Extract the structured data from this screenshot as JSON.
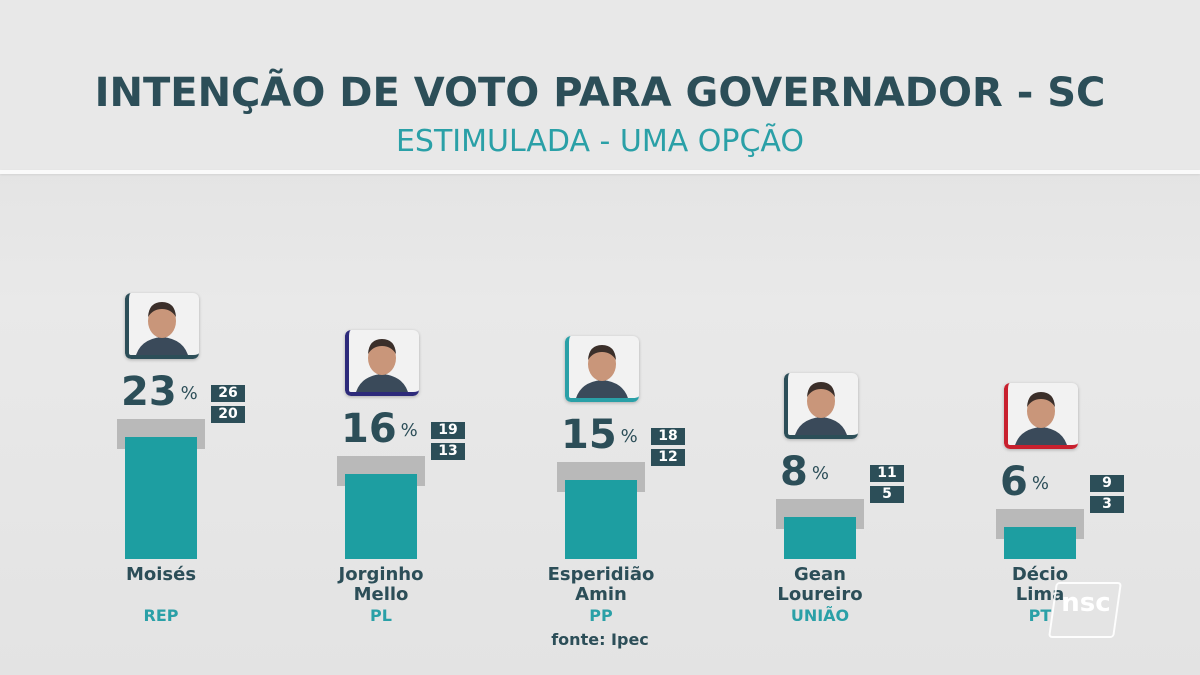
{
  "header": {
    "title": "INTENÇÃO DE VOTO PARA GOVERNADOR - SC",
    "subtitle": "ESTIMULADA - UMA OPÇÃO"
  },
  "source": "fonte: Ipec",
  "logo": "nsc",
  "chart_data": {
    "type": "bar",
    "title": "INTENÇÃO DE VOTO PARA GOVERNADOR - SC",
    "subtitle": "ESTIMULADA - UMA OPÇÃO",
    "unit": "%",
    "categories": [
      "Moisés",
      "Jorginho Mello",
      "Esperidião Amin",
      "Gean Loureiro",
      "Décio Lima"
    ],
    "candidates": [
      {
        "name_lines": [
          "Moisés"
        ],
        "party": "REP",
        "value": 23,
        "upper": 26,
        "lower": 20,
        "accent": "#2c4e58"
      },
      {
        "name_lines": [
          "Jorginho",
          "Mello"
        ],
        "party": "PL",
        "value": 16,
        "upper": 19,
        "lower": 13,
        "accent": "#2d2a7a"
      },
      {
        "name_lines": [
          "Esperidião",
          "Amin"
        ],
        "party": "PP",
        "value": 15,
        "upper": 18,
        "lower": 12,
        "accent": "#2aa0a7"
      },
      {
        "name_lines": [
          "Gean",
          "Loureiro"
        ],
        "party": "UNIÃO",
        "value": 8,
        "upper": 11,
        "lower": 5,
        "accent": "#2c4e58"
      },
      {
        "name_lines": [
          "Décio",
          "Lima"
        ],
        "party": "PT",
        "value": 6,
        "upper": 9,
        "lower": 3,
        "accent": "#c8202e"
      }
    ],
    "colors": {
      "bar": "#1d9ea1",
      "cap": "#b9b9b9",
      "text": "#2c4e58",
      "accent": "#2aa0a7"
    }
  }
}
